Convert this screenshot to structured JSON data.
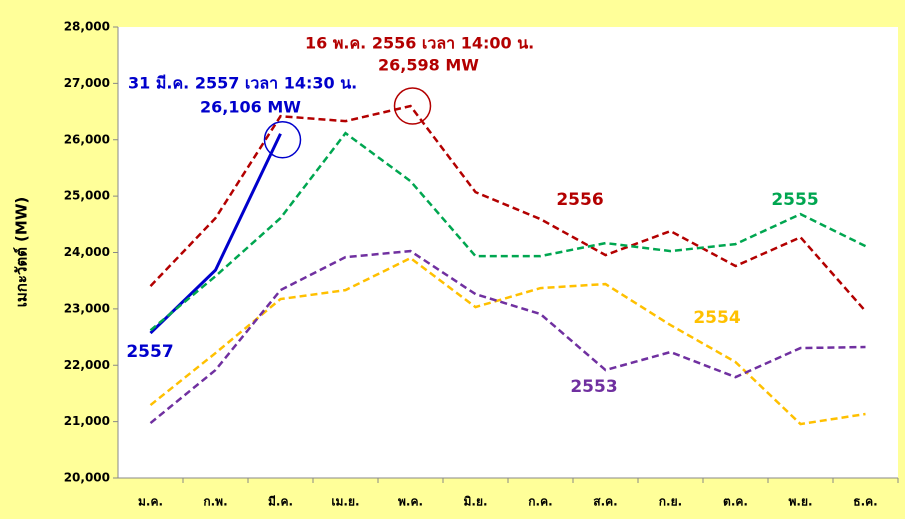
{
  "chart_data": {
    "type": "line",
    "y_label": "เมกะวัตต์ (MW)",
    "categories": [
      "ม.ค.",
      "ก.พ.",
      "มี.ค.",
      "เม.ย.",
      "พ.ค.",
      "มิ.ย.",
      "ก.ค.",
      "ส.ค.",
      "ก.ย.",
      "ต.ค.",
      "พ.ย.",
      "ธ.ค."
    ],
    "ylim": [
      20000,
      28000
    ],
    "yticks": [
      {
        "value": 20000,
        "label": "20,000"
      },
      {
        "value": 21000,
        "label": "21,000"
      },
      {
        "value": 22000,
        "label": "22,000"
      },
      {
        "value": 23000,
        "label": "23,000"
      },
      {
        "value": 24000,
        "label": "24,000"
      },
      {
        "value": 25000,
        "label": "25,000"
      },
      {
        "value": 26000,
        "label": "26,000"
      },
      {
        "value": 27000,
        "label": "27,000"
      },
      {
        "value": 28000,
        "label": "28,000"
      }
    ],
    "grid": false,
    "series": [
      {
        "name": "2557",
        "color": "#0000cc",
        "line_style": "solid",
        "values": [
          22571,
          23688,
          26106,
          null,
          null,
          null,
          null,
          null,
          null,
          null,
          null,
          null
        ]
      },
      {
        "name": "2556",
        "color": "#b30000",
        "line_style": "dashed",
        "values": [
          23404,
          24610,
          26418,
          26330,
          26598,
          25071,
          24592,
          23954,
          24380,
          23760,
          24270,
          22960
        ]
      },
      {
        "name": "2555",
        "color": "#00a650",
        "line_style": "dashed",
        "values": [
          22620,
          23580,
          24610,
          26117,
          25266,
          23936,
          23936,
          24167,
          24025,
          24149,
          24681,
          24113
        ]
      },
      {
        "name": "2554",
        "color": "#ffc000",
        "line_style": "dashed",
        "values": [
          21294,
          22216,
          23174,
          23333,
          23901,
          23032,
          23369,
          23440,
          22713,
          22057,
          20957,
          21135
        ]
      },
      {
        "name": "2553",
        "color": "#7030a0",
        "line_style": "dashed",
        "values": [
          20975,
          21915,
          23333,
          23918,
          24025,
          23262,
          22908,
          21915,
          22234,
          21790,
          22305,
          22323
        ]
      }
    ],
    "annotations": [
      {
        "series": 0,
        "index": 2,
        "line1": "31  มี.ค. 2557  เวลา 14:30 น.",
        "line2": "26,106  MW"
      },
      {
        "series": 1,
        "index": 4,
        "line1": "16 พ.ค. 2556  เวลา 14:00 น.",
        "line2": "26,598 MW"
      }
    ]
  }
}
